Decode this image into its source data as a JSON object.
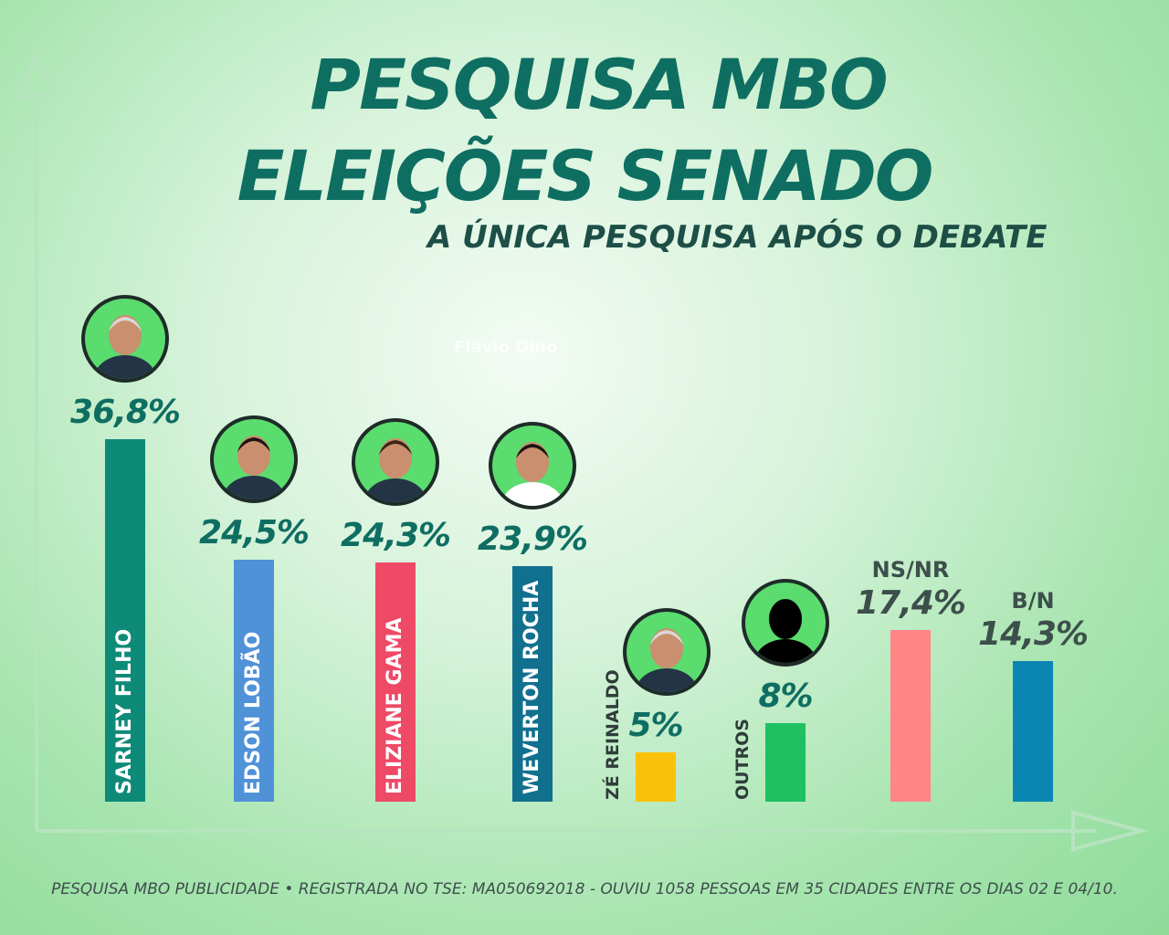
{
  "header": {
    "title_line1": "PESQUISA MBO",
    "title_line2": "ELEIÇÕES SENADO",
    "subtitle": "A ÚNICA PESQUISA APÓS O DEBATE",
    "watermark": "Flávio Dino"
  },
  "footer": {
    "note": "PESQUISA MBO PUBLICIDADE • REGISTRADA NO TSE: MA050692018 - OUVIU 1058 PESSOAS EM 35 CIDADES ENTRE OS DIAS 02 E 04/10."
  },
  "chart_data": {
    "type": "bar",
    "title": "PESQUISA MBO ELEIÇÕES SENADO",
    "subtitle": "A ÚNICA PESQUISA APÓS O DEBATE",
    "categories": [
      "SARNEY FILHO",
      "EDSON LOBÃO",
      "ELIZIANE GAMA",
      "WEVERTON ROCHA",
      "ZÉ REINALDO",
      "OUTROS",
      "NS/NR",
      "B/N"
    ],
    "values": [
      36.8,
      24.5,
      24.3,
      23.9,
      5,
      8,
      17.4,
      14.3
    ],
    "value_labels": [
      "36,8%",
      "24,5%",
      "24,3%",
      "23,9%",
      "5%",
      "8%",
      "17,4%",
      "14,3%"
    ],
    "colors": [
      "#0e8a78",
      "#4f92d8",
      "#ee4a66",
      "#12708f",
      "#fbc10a",
      "#1fc062",
      "#ff8587",
      "#0b86b3"
    ],
    "unit": "%",
    "xlabel": "",
    "ylabel": "",
    "grid": false,
    "legend": "none"
  }
}
